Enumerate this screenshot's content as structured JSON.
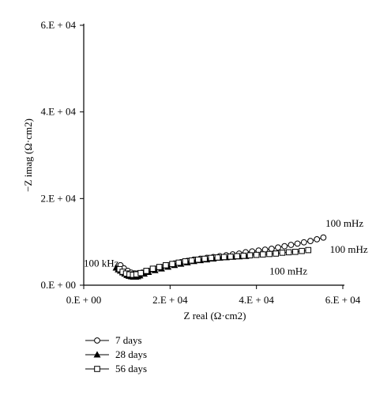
{
  "chart_data": {
    "type": "scatter",
    "xlabel": "Z real (Ω·cm2)",
    "ylabel": "−Z imag (Ω·cm2)",
    "xlim": [
      0,
      60000
    ],
    "ylim": [
      0,
      60000
    ],
    "x_ticks": [
      0,
      20000,
      40000,
      60000
    ],
    "y_ticks": [
      0,
      20000,
      40000,
      60000
    ],
    "x_tick_labels": [
      "0.E + 00",
      "2.E + 04",
      "4.E + 04",
      "6.E + 04"
    ],
    "y_tick_labels": [
      "0.E + 00",
      "2.E + 04",
      "4.E + 04",
      "6.E + 04"
    ],
    "grid": false,
    "legend_position": "bottom-left, below plot",
    "annotations": [
      {
        "text": "100 kHz",
        "x": 0,
        "y": 4300
      },
      {
        "text": "100 mHz",
        "x": 56000,
        "y": 13500
      },
      {
        "text": "100 mHz",
        "x": 57000,
        "y": 7500
      },
      {
        "text": "100 mHz",
        "x": 43000,
        "y": 2500
      }
    ],
    "series": [
      {
        "name": "7 days",
        "marker": "open-circle",
        "x": [
          8500,
          9300,
          10200,
          11000,
          11800,
          12500,
          13500,
          15000,
          16500,
          18000,
          19500,
          21000,
          22500,
          24000,
          25500,
          27000,
          28500,
          30000,
          31500,
          33000,
          34500,
          36000,
          37500,
          39000,
          40500,
          42000,
          43500,
          45000,
          46500,
          48000,
          49500,
          51000,
          52500,
          54000,
          55500
        ],
        "y": [
          4600,
          3900,
          3300,
          2900,
          2700,
          2700,
          2900,
          3300,
          3800,
          4200,
          4600,
          5000,
          5300,
          5600,
          5900,
          6100,
          6300,
          6500,
          6700,
          6900,
          7100,
          7300,
          7600,
          7800,
          8000,
          8200,
          8400,
          8700,
          9000,
          9300,
          9600,
          9900,
          10200,
          10600,
          11000
        ]
      },
      {
        "name": "28 days",
        "marker": "filled-triangle",
        "x": [
          7500,
          8000,
          8500,
          9000,
          9500,
          10000,
          10500,
          11000,
          11500,
          12000,
          12500,
          13000,
          14000,
          15000,
          16500,
          18000,
          19500,
          21000,
          22500,
          24000,
          25500,
          27000,
          28500,
          30000,
          31500,
          33000,
          34500,
          36000,
          37500
        ],
        "y": [
          4000,
          3600,
          3300,
          2900,
          2600,
          2300,
          2100,
          2000,
          1900,
          1900,
          2000,
          2200,
          2600,
          3000,
          3400,
          3800,
          4200,
          4600,
          4900,
          5200,
          5500,
          5700,
          5900,
          6100,
          6300,
          6400,
          6500,
          6600,
          6700
        ]
      },
      {
        "name": "56 days",
        "marker": "open-square",
        "x": [
          8300,
          9000,
          9800,
          10600,
          11400,
          12200,
          13200,
          14500,
          16000,
          17500,
          19000,
          20500,
          22000,
          23500,
          25000,
          26500,
          28000,
          29500,
          31000,
          32500,
          34000,
          35500,
          37000,
          38500,
          40000,
          41500,
          43000,
          44500,
          46000,
          47500,
          49000,
          50500,
          52000
        ],
        "y": [
          3700,
          3100,
          2700,
          2500,
          2400,
          2500,
          2800,
          3300,
          3800,
          4200,
          4600,
          4900,
          5200,
          5500,
          5700,
          5900,
          6100,
          6300,
          6400,
          6500,
          6600,
          6700,
          6800,
          6900,
          7000,
          7100,
          7200,
          7300,
          7500,
          7600,
          7700,
          7900,
          8100
        ]
      }
    ]
  }
}
